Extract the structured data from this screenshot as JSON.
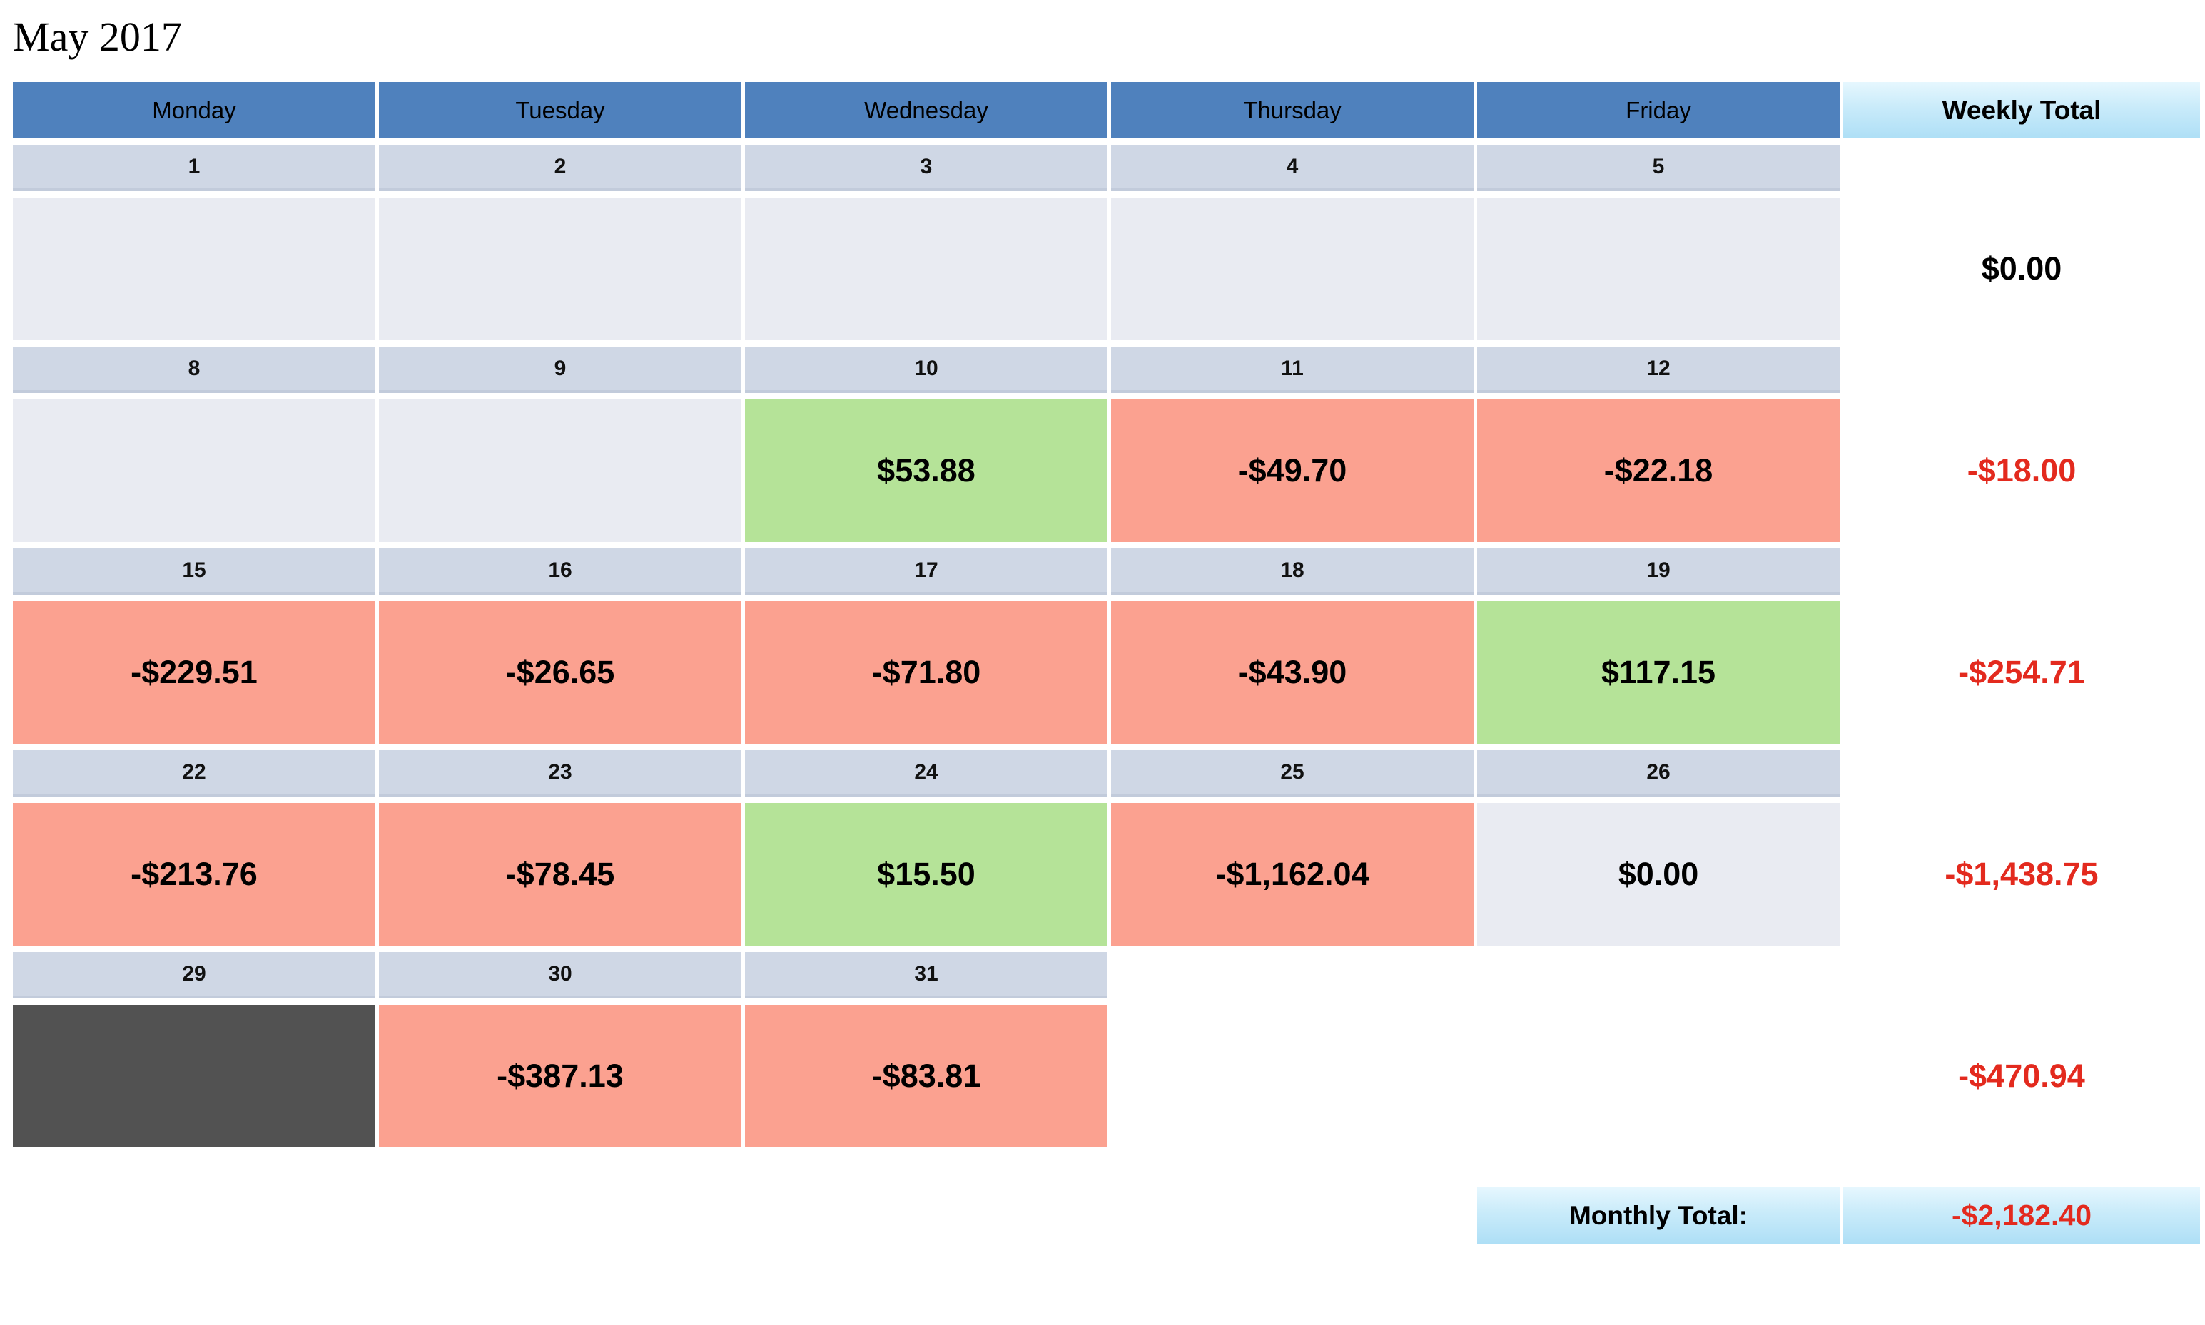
{
  "title": "May 2017",
  "day_headers": [
    "Monday",
    "Tuesday",
    "Wednesday",
    "Thursday",
    "Friday"
  ],
  "weekly_total_header": "Weekly Total",
  "weeks": [
    {
      "dates": [
        {
          "label": "1",
          "type": "date"
        },
        {
          "label": "2",
          "type": "date"
        },
        {
          "label": "3",
          "type": "date"
        },
        {
          "label": "4",
          "type": "date"
        },
        {
          "label": "5",
          "type": "date"
        }
      ],
      "cells": [
        {
          "value": "",
          "type": "empty"
        },
        {
          "value": "",
          "type": "empty"
        },
        {
          "value": "",
          "type": "empty"
        },
        {
          "value": "",
          "type": "empty"
        },
        {
          "value": "",
          "type": "empty"
        }
      ],
      "total": {
        "value": "$0.00",
        "tone": "neutral"
      }
    },
    {
      "dates": [
        {
          "label": "8",
          "type": "date"
        },
        {
          "label": "9",
          "type": "date"
        },
        {
          "label": "10",
          "type": "date"
        },
        {
          "label": "11",
          "type": "date"
        },
        {
          "label": "12",
          "type": "date"
        }
      ],
      "cells": [
        {
          "value": "",
          "type": "empty"
        },
        {
          "value": "",
          "type": "empty"
        },
        {
          "value": "$53.88",
          "type": "gain"
        },
        {
          "value": "-$49.70",
          "type": "loss"
        },
        {
          "value": "-$22.18",
          "type": "loss"
        }
      ],
      "total": {
        "value": "-$18.00",
        "tone": "negative"
      }
    },
    {
      "dates": [
        {
          "label": "15",
          "type": "date"
        },
        {
          "label": "16",
          "type": "date"
        },
        {
          "label": "17",
          "type": "date"
        },
        {
          "label": "18",
          "type": "date"
        },
        {
          "label": "19",
          "type": "date"
        }
      ],
      "cells": [
        {
          "value": "-$229.51",
          "type": "loss"
        },
        {
          "value": "-$26.65",
          "type": "loss"
        },
        {
          "value": "-$71.80",
          "type": "loss"
        },
        {
          "value": "-$43.90",
          "type": "loss"
        },
        {
          "value": "$117.15",
          "type": "gain"
        }
      ],
      "total": {
        "value": "-$254.71",
        "tone": "negative"
      }
    },
    {
      "dates": [
        {
          "label": "22",
          "type": "date"
        },
        {
          "label": "23",
          "type": "date"
        },
        {
          "label": "24",
          "type": "date"
        },
        {
          "label": "25",
          "type": "date"
        },
        {
          "label": "26",
          "type": "date"
        }
      ],
      "cells": [
        {
          "value": "-$213.76",
          "type": "loss"
        },
        {
          "value": "-$78.45",
          "type": "loss"
        },
        {
          "value": "$15.50",
          "type": "gain"
        },
        {
          "value": "-$1,162.04",
          "type": "loss"
        },
        {
          "value": "$0.00",
          "type": "zero"
        }
      ],
      "total": {
        "value": "-$1,438.75",
        "tone": "negative"
      }
    },
    {
      "dates": [
        {
          "label": "29",
          "type": "date"
        },
        {
          "label": "30",
          "type": "date"
        },
        {
          "label": "31",
          "type": "date"
        },
        {
          "label": "",
          "type": "none"
        },
        {
          "label": "",
          "type": "none"
        }
      ],
      "cells": [
        {
          "value": "",
          "type": "holiday"
        },
        {
          "value": "-$387.13",
          "type": "loss"
        },
        {
          "value": "-$83.81",
          "type": "loss"
        },
        {
          "value": "",
          "type": "none"
        },
        {
          "value": "",
          "type": "none"
        }
      ],
      "total": {
        "value": "-$470.94",
        "tone": "negative"
      }
    }
  ],
  "monthly": {
    "label": "Monthly Total:",
    "value": "-$2,182.40"
  },
  "colors": {
    "header_blue": "#4F81BD",
    "date_strip": "#CFD7E5",
    "empty_cell": "#E9EBF2",
    "gain_green": "#B5E398",
    "loss_salmon": "#FBA190",
    "holiday_gray": "#525252",
    "negative_red": "#E32A1E",
    "total_gradient_top": "#E6F7FE",
    "total_gradient_bottom": "#AEDFF6"
  }
}
